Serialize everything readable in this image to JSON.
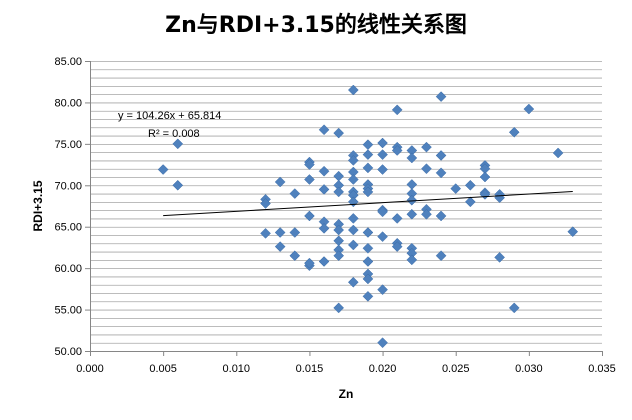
{
  "chart_data": {
    "type": "scatter",
    "title": "Zn与RDI+3.15的线性关系图",
    "xlabel": "Zn",
    "ylabel": "RDI+3.15",
    "xlim": [
      0,
      0.035
    ],
    "ylim": [
      50,
      85
    ],
    "x_ticks": [
      "0.000",
      "0.005",
      "0.010",
      "0.015",
      "0.020",
      "0.025",
      "0.030",
      "0.035"
    ],
    "y_ticks": [
      "50.00",
      "55.00",
      "60.00",
      "65.00",
      "70.00",
      "75.00",
      "80.00",
      "85.00"
    ],
    "grid": "horizontal",
    "marker_color": "#4F81BD",
    "trendline": {
      "slope": 104.26,
      "intercept": 65.814,
      "x_range": [
        0.005,
        0.033
      ],
      "equation_text": "y = 104.26x  + 65.814",
      "r2_text": "R² = 0.008"
    },
    "points": [
      [
        0.005,
        71.9
      ],
      [
        0.006,
        75.0
      ],
      [
        0.006,
        70.0
      ],
      [
        0.012,
        68.3
      ],
      [
        0.012,
        67.8
      ],
      [
        0.012,
        64.2
      ],
      [
        0.013,
        70.4
      ],
      [
        0.013,
        64.3
      ],
      [
        0.013,
        62.6
      ],
      [
        0.014,
        69.0
      ],
      [
        0.014,
        64.3
      ],
      [
        0.014,
        61.5
      ],
      [
        0.015,
        72.8
      ],
      [
        0.015,
        72.5
      ],
      [
        0.015,
        70.7
      ],
      [
        0.015,
        66.3
      ],
      [
        0.015,
        60.3
      ],
      [
        0.015,
        60.6
      ],
      [
        0.016,
        76.7
      ],
      [
        0.016,
        71.7
      ],
      [
        0.016,
        69.5
      ],
      [
        0.016,
        65.6
      ],
      [
        0.016,
        64.8
      ],
      [
        0.016,
        60.8
      ],
      [
        0.017,
        76.3
      ],
      [
        0.017,
        71.1
      ],
      [
        0.017,
        70.0
      ],
      [
        0.017,
        69.2
      ],
      [
        0.017,
        65.3
      ],
      [
        0.017,
        64.6
      ],
      [
        0.017,
        63.3
      ],
      [
        0.017,
        62.2
      ],
      [
        0.017,
        61.5
      ],
      [
        0.017,
        55.2
      ],
      [
        0.018,
        81.5
      ],
      [
        0.018,
        73.6
      ],
      [
        0.018,
        73.0
      ],
      [
        0.018,
        71.6
      ],
      [
        0.018,
        70.7
      ],
      [
        0.018,
        69.2
      ],
      [
        0.018,
        68.8
      ],
      [
        0.018,
        68.0
      ],
      [
        0.018,
        66.0
      ],
      [
        0.018,
        64.6
      ],
      [
        0.018,
        62.8
      ],
      [
        0.018,
        58.3
      ],
      [
        0.019,
        74.9
      ],
      [
        0.019,
        73.7
      ],
      [
        0.019,
        72.1
      ],
      [
        0.019,
        70.1
      ],
      [
        0.019,
        69.6
      ],
      [
        0.019,
        69.2
      ],
      [
        0.019,
        64.3
      ],
      [
        0.019,
        62.4
      ],
      [
        0.019,
        60.8
      ],
      [
        0.019,
        59.3
      ],
      [
        0.019,
        58.7
      ],
      [
        0.019,
        56.6
      ],
      [
        0.02,
        75.1
      ],
      [
        0.02,
        73.7
      ],
      [
        0.02,
        71.9
      ],
      [
        0.02,
        67.0
      ],
      [
        0.02,
        66.8
      ],
      [
        0.02,
        63.8
      ],
      [
        0.02,
        57.4
      ],
      [
        0.02,
        51.0
      ],
      [
        0.021,
        79.1
      ],
      [
        0.021,
        74.6
      ],
      [
        0.021,
        74.2
      ],
      [
        0.021,
        66.0
      ],
      [
        0.021,
        63.0
      ],
      [
        0.021,
        62.6
      ],
      [
        0.022,
        74.2
      ],
      [
        0.022,
        73.3
      ],
      [
        0.022,
        70.1
      ],
      [
        0.022,
        69.0
      ],
      [
        0.022,
        68.2
      ],
      [
        0.022,
        66.5
      ],
      [
        0.022,
        62.4
      ],
      [
        0.022,
        61.8
      ],
      [
        0.022,
        61.0
      ],
      [
        0.023,
        74.6
      ],
      [
        0.023,
        72.0
      ],
      [
        0.023,
        67.1
      ],
      [
        0.023,
        66.5
      ],
      [
        0.024,
        80.7
      ],
      [
        0.024,
        73.6
      ],
      [
        0.024,
        71.5
      ],
      [
        0.024,
        66.3
      ],
      [
        0.024,
        61.5
      ],
      [
        0.025,
        69.6
      ],
      [
        0.026,
        70.0
      ],
      [
        0.026,
        68.0
      ],
      [
        0.027,
        72.4
      ],
      [
        0.027,
        72.0
      ],
      [
        0.027,
        71.0
      ],
      [
        0.027,
        69.1
      ],
      [
        0.027,
        68.9
      ],
      [
        0.028,
        68.9
      ],
      [
        0.028,
        68.5
      ],
      [
        0.028,
        61.3
      ],
      [
        0.029,
        76.4
      ],
      [
        0.029,
        55.2
      ],
      [
        0.03,
        79.2
      ],
      [
        0.032,
        73.9
      ],
      [
        0.033,
        64.4
      ]
    ]
  }
}
